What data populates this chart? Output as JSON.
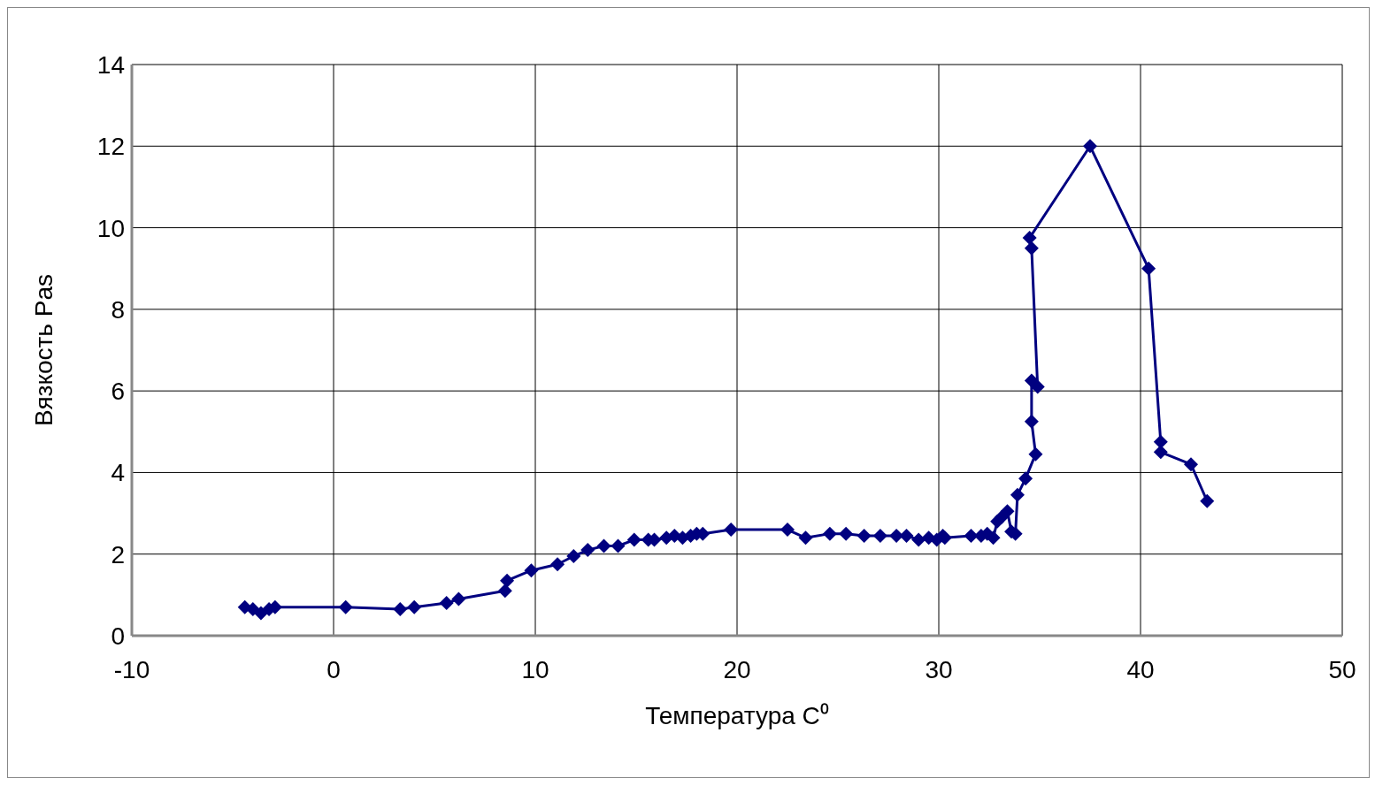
{
  "chart_data": {
    "type": "line",
    "xlabel": "Температура C⁰",
    "ylabel": "Вязкость Pas",
    "marker": "diamond",
    "line_style": "solid",
    "grid": true,
    "legend": false,
    "xlim": [
      -10,
      50
    ],
    "xticks": [
      -10,
      0,
      10,
      20,
      30,
      40,
      50
    ],
    "ylim": [
      0,
      14
    ],
    "yticks": [
      0,
      2,
      4,
      6,
      8,
      10,
      12,
      14
    ],
    "series": [
      {
        "color": "#000080",
        "x": [
          -4.4,
          -4.0,
          -3.6,
          -3.2,
          -2.9,
          0.6,
          3.3,
          4.0,
          5.6,
          6.2,
          8.5,
          8.6,
          9.8,
          11.1,
          11.9,
          12.6,
          13.4,
          14.1,
          14.9,
          15.6,
          15.9,
          16.5,
          16.9,
          17.3,
          17.7,
          18.0,
          18.3,
          19.7,
          22.5,
          23.4,
          24.6,
          25.4,
          26.3,
          27.1,
          27.9,
          28.4,
          29.0,
          29.5,
          29.9,
          30.2,
          30.3,
          31.6,
          32.1,
          32.4,
          32.7,
          32.9,
          33.1,
          33.4,
          33.6,
          33.8,
          33.9,
          34.3,
          34.8,
          34.6,
          34.6,
          34.9,
          34.6,
          34.5,
          37.5,
          40.4,
          41.0,
          41.0,
          42.5,
          43.3
        ],
        "values": [
          0.7,
          0.65,
          0.55,
          0.65,
          0.7,
          0.7,
          0.65,
          0.7,
          0.8,
          0.9,
          1.1,
          1.35,
          1.6,
          1.75,
          1.95,
          2.1,
          2.2,
          2.2,
          2.35,
          2.35,
          2.35,
          2.4,
          2.45,
          2.4,
          2.45,
          2.5,
          2.5,
          2.6,
          2.6,
          2.4,
          2.5,
          2.5,
          2.45,
          2.45,
          2.45,
          2.45,
          2.35,
          2.4,
          2.35,
          2.45,
          2.4,
          2.45,
          2.45,
          2.5,
          2.4,
          2.8,
          2.9,
          3.05,
          2.55,
          2.5,
          3.45,
          3.85,
          4.45,
          5.25,
          6.25,
          6.1,
          9.5,
          9.75,
          12,
          9,
          4.75,
          4.5,
          4.2,
          3.3
        ]
      }
    ]
  }
}
